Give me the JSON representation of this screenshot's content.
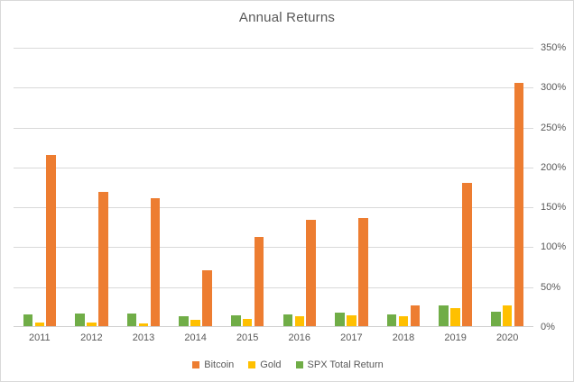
{
  "title": "Annual Returns",
  "colors": {
    "text": "#595959",
    "grid": "#d9d9d9",
    "border": "#d9d9d9",
    "bitcoin": "#ED7D31",
    "gold": "#FFC000",
    "spx": "#70AD47"
  },
  "chart_data": {
    "type": "bar",
    "title": "Annual Returns",
    "categories": [
      "2011",
      "2012",
      "2013",
      "2014",
      "2015",
      "2016",
      "2017",
      "2018",
      "2019",
      "2020"
    ],
    "series": [
      {
        "name": "Bitcoin",
        "color": "#ED7D31",
        "group_index": 2,
        "values": [
          215,
          168,
          160,
          70,
          112,
          133,
          135,
          26,
          180,
          305
        ]
      },
      {
        "name": "Gold",
        "color": "#FFC000",
        "group_index": 1,
        "values": [
          4,
          4,
          3,
          8,
          9,
          13,
          14,
          13,
          23,
          26
        ]
      },
      {
        "name": "SPX Total Return",
        "color": "#70AD47",
        "group_index": 0,
        "values": [
          15,
          16,
          16,
          13,
          14,
          15,
          17,
          15,
          26,
          18
        ]
      }
    ],
    "ylim": [
      0,
      350
    ],
    "yticks": [
      {
        "label": "0%",
        "value": 0
      },
      {
        "label": "50%",
        "value": 50
      },
      {
        "label": "100%",
        "value": 100
      },
      {
        "label": "150%",
        "value": 150
      },
      {
        "label": "200%",
        "value": 200
      },
      {
        "label": "250%",
        "value": 250
      },
      {
        "label": "300%",
        "value": 300
      },
      {
        "label": "350%",
        "value": 350
      }
    ],
    "axis_side": "right",
    "grid": true,
    "legend_position": "bottom",
    "xlabel": "",
    "ylabel": ""
  }
}
